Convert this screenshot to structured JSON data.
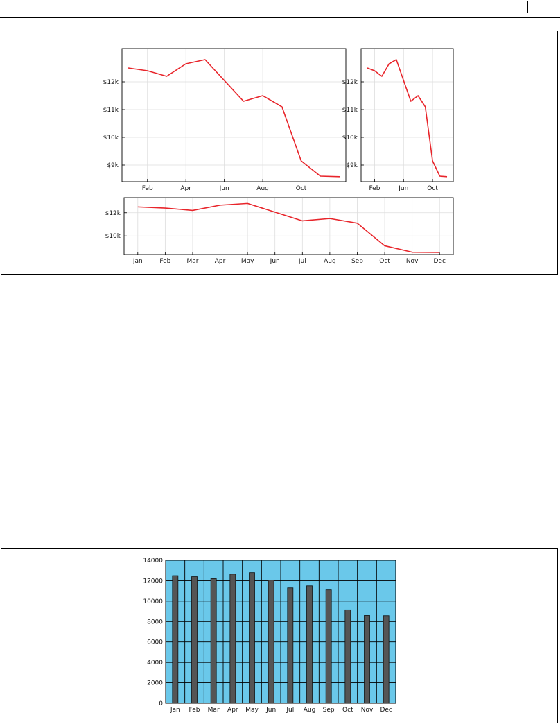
{
  "colors": {
    "line": "#e8252b",
    "grid": "#dddddd",
    "bar_fill": "#555555",
    "bar_axes_bg": "#6ac8ea"
  },
  "chart_data": [
    {
      "type": "line",
      "panel": "top-left",
      "x": [
        "Jan",
        "Feb",
        "Mar",
        "Apr",
        "May",
        "Jun",
        "Jul",
        "Aug",
        "Sep",
        "Oct",
        "Nov",
        "Dec"
      ],
      "values": [
        12500,
        12400,
        12200,
        12650,
        12800,
        12050,
        11300,
        11500,
        11100,
        9150,
        8600,
        8580
      ],
      "xticks": [
        "Feb",
        "Apr",
        "Jun",
        "Aug",
        "Oct"
      ],
      "yticks": [
        "$9k",
        "$10k",
        "$11k",
        "$12k"
      ],
      "ylim": [
        8400,
        13200
      ],
      "grid": true
    },
    {
      "type": "line",
      "panel": "top-right",
      "x": [
        "Jan",
        "Feb",
        "Mar",
        "Apr",
        "May",
        "Jun",
        "Jul",
        "Aug",
        "Sep",
        "Oct",
        "Nov",
        "Dec"
      ],
      "values": [
        12500,
        12400,
        12200,
        12650,
        12800,
        12050,
        11300,
        11500,
        11100,
        9150,
        8600,
        8580
      ],
      "xticks": [
        "Feb",
        "Jun",
        "Oct"
      ],
      "yticks": [
        "$9k",
        "$10k",
        "$11k",
        "$12k"
      ],
      "ylim": [
        8400,
        13200
      ],
      "grid": true
    },
    {
      "type": "line",
      "panel": "bottom",
      "x": [
        "Jan",
        "Feb",
        "Mar",
        "Apr",
        "May",
        "Jun",
        "Jul",
        "Aug",
        "Sep",
        "Oct",
        "Nov",
        "Dec"
      ],
      "values": [
        12500,
        12400,
        12200,
        12650,
        12800,
        12050,
        11300,
        11500,
        11100,
        9150,
        8600,
        8580
      ],
      "xticks": [
        "Jan",
        "Feb",
        "Mar",
        "Apr",
        "May",
        "Jun",
        "Jul",
        "Aug",
        "Sep",
        "Oct",
        "Nov",
        "Dec"
      ],
      "yticks": [
        "$10k",
        "$12k"
      ],
      "ylim": [
        8400,
        13300
      ],
      "grid": true
    },
    {
      "type": "bar",
      "categories": [
        "Jan",
        "Feb",
        "Mar",
        "Apr",
        "May",
        "Jun",
        "Jul",
        "Aug",
        "Sep",
        "Oct",
        "Nov",
        "Dec"
      ],
      "values": [
        12500,
        12400,
        12200,
        12650,
        12800,
        12050,
        11300,
        11500,
        11100,
        9150,
        8600,
        8580
      ],
      "yticks": [
        "0",
        "2000",
        "4000",
        "6000",
        "8000",
        "10000",
        "12000",
        "14000"
      ],
      "ylim": [
        0,
        14000
      ],
      "grid": true
    }
  ]
}
